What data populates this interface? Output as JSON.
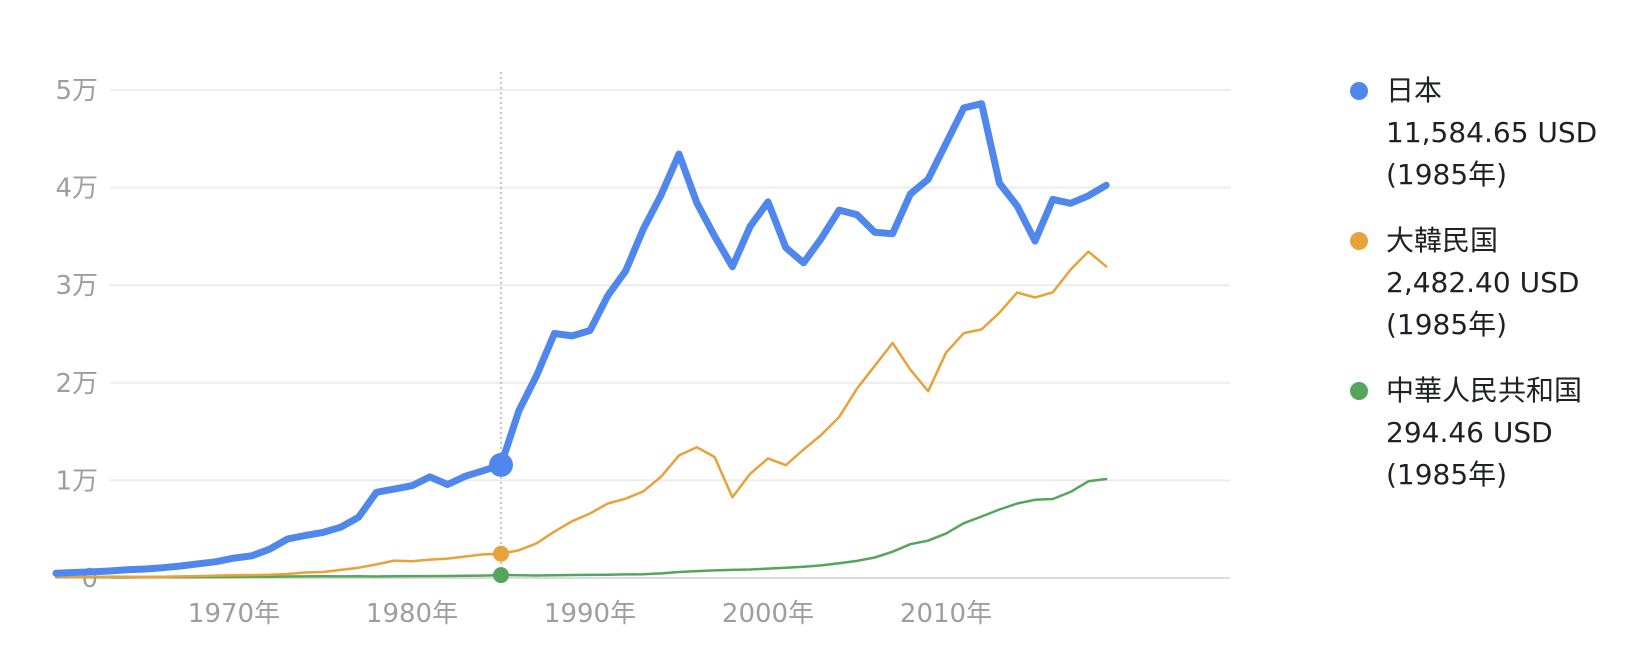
{
  "chart_data": {
    "type": "line",
    "x_axis": {
      "min": 1960,
      "max": 2023,
      "ticks": [
        1970,
        1980,
        1990,
        2000,
        2010
      ],
      "tick_labels": [
        "1970年",
        "1980年",
        "1990年",
        "2000年",
        "2010年"
      ]
    },
    "y_axis": {
      "min": 0,
      "max": 50000,
      "ticks": [
        0,
        10000,
        20000,
        30000,
        40000,
        50000
      ],
      "tick_labels": [
        "0",
        "1万",
        "2万",
        "3万",
        "4万",
        "5万"
      ]
    },
    "grid": true,
    "legend_position": "right",
    "hover": {
      "year": 1985
    },
    "x": [
      1960,
      1961,
      1962,
      1963,
      1964,
      1965,
      1966,
      1967,
      1968,
      1969,
      1970,
      1971,
      1972,
      1973,
      1974,
      1975,
      1976,
      1977,
      1978,
      1979,
      1980,
      1981,
      1982,
      1983,
      1984,
      1985,
      1986,
      1987,
      1988,
      1989,
      1990,
      1991,
      1992,
      1993,
      1994,
      1995,
      1996,
      1997,
      1998,
      1999,
      2000,
      2001,
      2002,
      2003,
      2004,
      2005,
      2006,
      2007,
      2008,
      2009,
      2010,
      2011,
      2012,
      2013,
      2014,
      2015,
      2016,
      2017,
      2018,
      2019
    ],
    "series": [
      {
        "name": "日本",
        "color": "#4f87ec",
        "values": [
          480,
          560,
          630,
          720,
          840,
          920,
          1060,
          1230,
          1450,
          1670,
          2040,
          2270,
          2950,
          3990,
          4350,
          4670,
          5200,
          6230,
          8780,
          9110,
          9460,
          10360,
          9580,
          10430,
          10990,
          11584.65,
          17110,
          20750,
          25050,
          24810,
          25360,
          28920,
          31460,
          35770,
          39270,
          43440,
          38440,
          35020,
          31900,
          36030,
          38530,
          33850,
          32290,
          34810,
          37690,
          37220,
          35430,
          35280,
          39340,
          40860,
          44510,
          48170,
          48600,
          40450,
          38110,
          34520,
          38790,
          38390,
          39160,
          40250
        ],
        "value_labels": [
          "11,584.65 USD",
          "(1985年)"
        ]
      },
      {
        "name": "大韓民国",
        "color": "#e8a23a",
        "values": [
          158,
          94,
          106,
          146,
          124,
          109,
          133,
          161,
          198,
          243,
          279,
          301,
          324,
          406,
          563,
          616,
          827,
          1051,
          1392,
          1783,
          1715,
          1883,
          1992,
          2199,
          2413,
          2482.4,
          2834,
          3555,
          4749,
          5818,
          6610,
          7637,
          8127,
          8885,
          10385,
          12565,
          13403,
          12398,
          8282,
          10672,
          12257,
          11561,
          13165,
          14673,
          16496,
          19403,
          21744,
          24086,
          21346,
          19144,
          23083,
          25096,
          25467,
          27180,
          29250,
          28737,
          29274,
          31601,
          33447,
          31929
        ],
        "value_labels": [
          "2,482.40 USD",
          "(1985年)"
        ]
      },
      {
        "name": "中華人民共和国",
        "color": "#55a65a",
        "values": [
          90,
          76,
          70,
          74,
          85,
          98,
          104,
          97,
          91,
          100,
          113,
          119,
          132,
          157,
          160,
          178,
          165,
          185,
          156,
          184,
          195,
          197,
          203,
          225,
          251,
          294.46,
          282,
          252,
          283,
          310,
          318,
          333,
          366,
          377,
          473,
          610,
          709,
          782,
          829,
          873,
          959,
          1053,
          1149,
          1289,
          1509,
          1753,
          2099,
          2694,
          3468,
          3832,
          4550,
          5614,
          6301,
          7020,
          7636,
          8016,
          8094,
          8817,
          9905,
          10143
        ],
        "value_labels": [
          "294.46 USD",
          "(1985年)"
        ]
      }
    ]
  }
}
